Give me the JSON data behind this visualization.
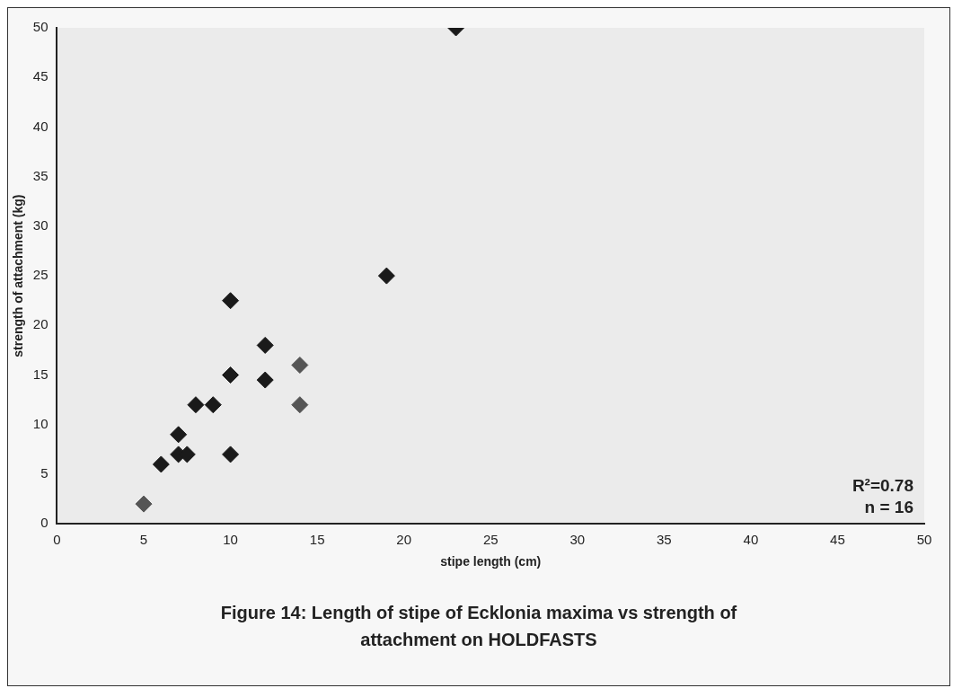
{
  "chart_data": {
    "type": "scatter",
    "title": "Figure 14: Length of stipe of Ecklonia maxima vs strength of attachment on HOLDFASTS",
    "xlabel": "stipe length (cm)",
    "ylabel": "strength of attachment (kg)",
    "x": [
      5,
      6,
      7,
      7,
      7.5,
      8,
      9,
      10,
      10,
      10,
      12,
      12,
      14,
      14,
      19,
      23
    ],
    "values": [
      2,
      6,
      9,
      7,
      7,
      12,
      12,
      22.5,
      15,
      7,
      18,
      14.5,
      16,
      12,
      25,
      50
    ],
    "colors": [
      "#555555",
      "#1a1a1a",
      "#1a1a1a",
      "#1a1a1a",
      "#1a1a1a",
      "#1a1a1a",
      "#1a1a1a",
      "#1a1a1a",
      "#1a1a1a",
      "#1a1a1a",
      "#1a1a1a",
      "#1a1a1a",
      "#555555",
      "#555555",
      "#1a1a1a",
      "#1a1a1a"
    ],
    "marker": "diamond",
    "xlim": [
      0,
      50
    ],
    "ylim": [
      0,
      50
    ],
    "xticks": [
      0,
      5,
      10,
      15,
      20,
      25,
      30,
      35,
      40,
      45,
      50
    ],
    "yticks": [
      0,
      5,
      10,
      15,
      20,
      25,
      30,
      35,
      40,
      45,
      50
    ],
    "grid": false,
    "legend": false,
    "annotations": [
      "R²=0.78",
      "n = 16"
    ]
  }
}
